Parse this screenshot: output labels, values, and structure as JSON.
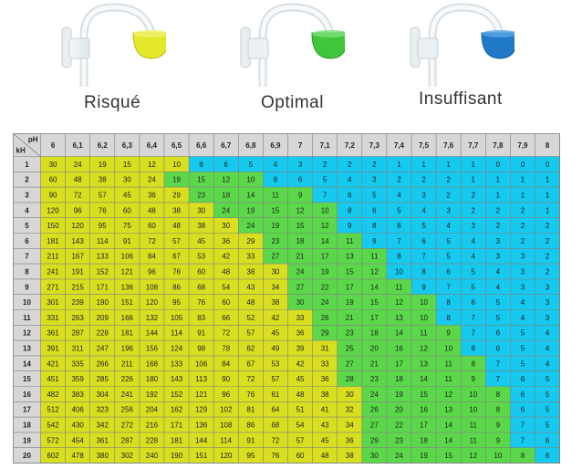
{
  "labels": {
    "risky": "Risqué",
    "optimal": "Optimal",
    "insufficient": "Insuffisant"
  },
  "colors": {
    "risky": "#d9df1f",
    "optimal": "#5bd84a",
    "insufficient": "#16c9ee",
    "header": "#d7d7d7",
    "grid": "#7f7f7f"
  },
  "chart_data": {
    "type": "table",
    "corner_labels": {
      "col_axis": "pH",
      "row_axis": "kH"
    },
    "columns": [
      "6",
      "6,1",
      "6,2",
      "6,3",
      "6,4",
      "6,5",
      "6,6",
      "6,7",
      "6,8",
      "6,9",
      "7",
      "7,1",
      "7,2",
      "7,3",
      "7,4",
      "7,5",
      "7,6",
      "7,7",
      "7,8",
      "7,9",
      "8"
    ],
    "rows": [
      {
        "kh": "1",
        "values": [
          30,
          24,
          19,
          15,
          12,
          10,
          8,
          6,
          5,
          4,
          3,
          2,
          2,
          2,
          1,
          1,
          1,
          1,
          0,
          0,
          0
        ],
        "zones": "YYYYYYBBBBBBBBBBBBBBB"
      },
      {
        "kh": "2",
        "values": [
          60,
          48,
          38,
          30,
          24,
          19,
          15,
          12,
          10,
          8,
          6,
          5,
          4,
          3,
          2,
          2,
          2,
          1,
          1,
          1,
          1
        ],
        "zones": "YYYYYGGGGBBBBBBBBBBBB"
      },
      {
        "kh": "3",
        "values": [
          90,
          72,
          57,
          45,
          36,
          29,
          23,
          18,
          14,
          11,
          9,
          7,
          6,
          5,
          4,
          3,
          2,
          2,
          1,
          1,
          1
        ],
        "zones": "YYYYYYGGGGGBBBBBBBBBB"
      },
      {
        "kh": "4",
        "values": [
          120,
          96,
          76,
          60,
          48,
          38,
          30,
          24,
          19,
          15,
          12,
          10,
          8,
          6,
          5,
          4,
          3,
          2,
          2,
          2,
          1
        ],
        "zones": "YYYYYYYGGGGGBBBBBBBBB"
      },
      {
        "kh": "5",
        "values": [
          150,
          120,
          95,
          75,
          60,
          48,
          38,
          30,
          24,
          19,
          15,
          12,
          9,
          8,
          6,
          5,
          4,
          3,
          2,
          2,
          2
        ],
        "zones": "YYYYYYYYGGGGBBBBBBBBB"
      },
      {
        "kh": "6",
        "values": [
          181,
          143,
          114,
          91,
          72,
          57,
          45,
          36,
          29,
          23,
          18,
          14,
          11,
          9,
          7,
          6,
          5,
          4,
          3,
          2,
          2
        ],
        "zones": "YYYYYYYYYGGGGBBBBBBBB"
      },
      {
        "kh": "7",
        "values": [
          211,
          167,
          133,
          106,
          84,
          67,
          53,
          42,
          33,
          27,
          21,
          17,
          13,
          11,
          8,
          7,
          5,
          4,
          3,
          3,
          2
        ],
        "zones": "YYYYYYYYYGGGGGBBBBBBB"
      },
      {
        "kh": "8",
        "values": [
          241,
          191,
          152,
          121,
          96,
          76,
          60,
          48,
          38,
          30,
          24,
          19,
          15,
          12,
          10,
          8,
          6,
          5,
          4,
          3,
          2
        ],
        "zones": "YYYYYYYYYYGGGGBBBBBBB"
      },
      {
        "kh": "9",
        "values": [
          271,
          215,
          171,
          136,
          108,
          86,
          68,
          54,
          43,
          34,
          27,
          22,
          17,
          14,
          11,
          9,
          7,
          5,
          4,
          3,
          3
        ],
        "zones": "YYYYYYYYYYGGGGGBBBBBB"
      },
      {
        "kh": "10",
        "values": [
          301,
          239,
          190,
          151,
          120,
          95,
          76,
          60,
          48,
          38,
          30,
          24,
          19,
          15,
          12,
          10,
          8,
          6,
          5,
          4,
          3
        ],
        "zones": "YYYYYYYYYYGGGGGGBBBBB"
      },
      {
        "kh": "11",
        "values": [
          331,
          263,
          209,
          166,
          132,
          105,
          83,
          66,
          52,
          42,
          33,
          26,
          21,
          17,
          13,
          10,
          8,
          7,
          5,
          4,
          3
        ],
        "zones": "YYYYYYYYYYYGGGGGBBBBB"
      },
      {
        "kh": "12",
        "values": [
          361,
          287,
          228,
          181,
          144,
          114,
          91,
          72,
          57,
          45,
          36,
          29,
          23,
          18,
          14,
          11,
          9,
          7,
          6,
          5,
          4
        ],
        "zones": "YYYYYYYYYYYGGGGGGBBBB"
      },
      {
        "kh": "13",
        "values": [
          391,
          311,
          247,
          196,
          156,
          124,
          98,
          78,
          62,
          49,
          39,
          31,
          25,
          20,
          16,
          12,
          10,
          8,
          6,
          5,
          4
        ],
        "zones": "YYYYYYYYYYYYGGGGGBBBB"
      },
      {
        "kh": "14",
        "values": [
          421,
          335,
          266,
          211,
          168,
          133,
          106,
          84,
          67,
          53,
          42,
          33,
          27,
          21,
          17,
          13,
          11,
          8,
          7,
          5,
          4
        ],
        "zones": "YYYYYYYYYYYYGGGGGGBBB"
      },
      {
        "kh": "15",
        "values": [
          451,
          359,
          285,
          226,
          180,
          143,
          113,
          90,
          72,
          57,
          45,
          36,
          28,
          23,
          18,
          14,
          11,
          9,
          7,
          6,
          5
        ],
        "zones": "YYYYYYYYYYYYGGGGGGBBB"
      },
      {
        "kh": "16",
        "values": [
          482,
          383,
          304,
          241,
          192,
          152,
          121,
          96,
          76,
          61,
          48,
          38,
          30,
          24,
          19,
          15,
          12,
          10,
          8,
          6,
          5
        ],
        "zones": "YYYYYYYYYYYYYGGGGGGBB"
      },
      {
        "kh": "17",
        "values": [
          512,
          406,
          323,
          256,
          204,
          162,
          129,
          102,
          81,
          64,
          51,
          41,
          32,
          26,
          20,
          16,
          13,
          10,
          8,
          6,
          5
        ],
        "zones": "YYYYYYYYYYYYYGGGGGGBB"
      },
      {
        "kh": "18",
        "values": [
          542,
          430,
          342,
          272,
          216,
          171,
          136,
          108,
          86,
          68,
          54,
          43,
          34,
          27,
          22,
          17,
          14,
          11,
          9,
          7,
          5
        ],
        "zones": "YYYYYYYYYYYYYGGGGGGBB"
      },
      {
        "kh": "19",
        "values": [
          572,
          454,
          361,
          287,
          228,
          181,
          144,
          114,
          91,
          72,
          57,
          45,
          36,
          29,
          23,
          18,
          14,
          11,
          9,
          7,
          6
        ],
        "zones": "YYYYYYYYYYYYYGGGGGGBB"
      },
      {
        "kh": "20",
        "values": [
          602,
          478,
          380,
          302,
          240,
          190,
          151,
          120,
          95,
          76,
          60,
          48,
          38,
          30,
          24,
          19,
          15,
          12,
          10,
          8,
          6
        ],
        "zones": "YYYYYYYYYYYYYGGGGGGGB"
      }
    ]
  }
}
